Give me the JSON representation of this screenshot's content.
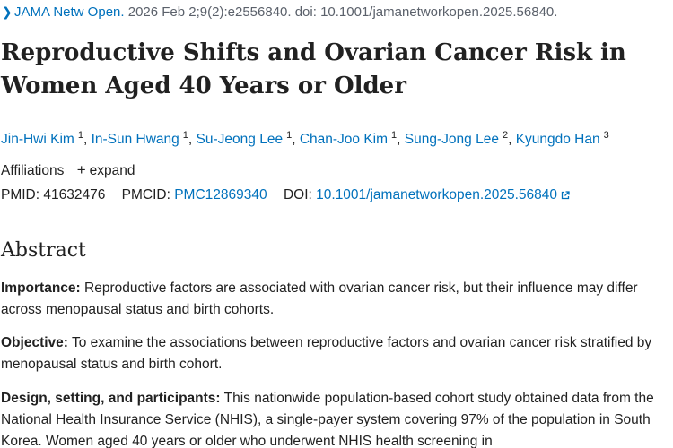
{
  "citation": {
    "journal": "JAMA Netw Open.",
    "rest": "2026 Feb 2;9(2):e2556840. doi: 10.1001/jamanetworkopen.2025.56840."
  },
  "article": {
    "title": "Reproductive Shifts and Ovarian Cancer Risk in Women Aged 40 Years or Older"
  },
  "authors": [
    {
      "name": "Jin-Hwi Kim",
      "sup": "1"
    },
    {
      "name": "In-Sun Hwang",
      "sup": "1"
    },
    {
      "name": "Su-Jeong Lee",
      "sup": "1"
    },
    {
      "name": "Chan-Joo Kim",
      "sup": "1"
    },
    {
      "name": "Sung-Jong Lee",
      "sup": "2"
    },
    {
      "name": "Kyungdo Han",
      "sup": "3"
    }
  ],
  "affiliations": {
    "label": "Affiliations",
    "expand_label": "expand"
  },
  "ids": {
    "pmid_label": "PMID:",
    "pmid": "41632476",
    "pmcid_label": "PMCID:",
    "pmcid": "PMC12869340",
    "doi_label": "DOI:",
    "doi": "10.1001/jamanetworkopen.2025.56840"
  },
  "abstract": {
    "heading": "Abstract",
    "sections": [
      {
        "label": "Importance:",
        "text": "Reproductive factors are associated with ovarian cancer risk, but their influence may differ across menopausal status and birth cohorts."
      },
      {
        "label": "Objective:",
        "text": "To examine the associations between reproductive factors and ovarian cancer risk stratified by menopausal status and birth cohort."
      },
      {
        "label": "Design, setting, and participants:",
        "text": "This nationwide population-based cohort study obtained data from the National Health Insurance Service (NHIS), a single-payer system covering 97% of the population in South Korea. Women aged 40 years or older who underwent NHIS health screening in"
      }
    ]
  },
  "colors": {
    "link": "#0071bc",
    "text": "#212121",
    "muted": "#5b616b"
  }
}
